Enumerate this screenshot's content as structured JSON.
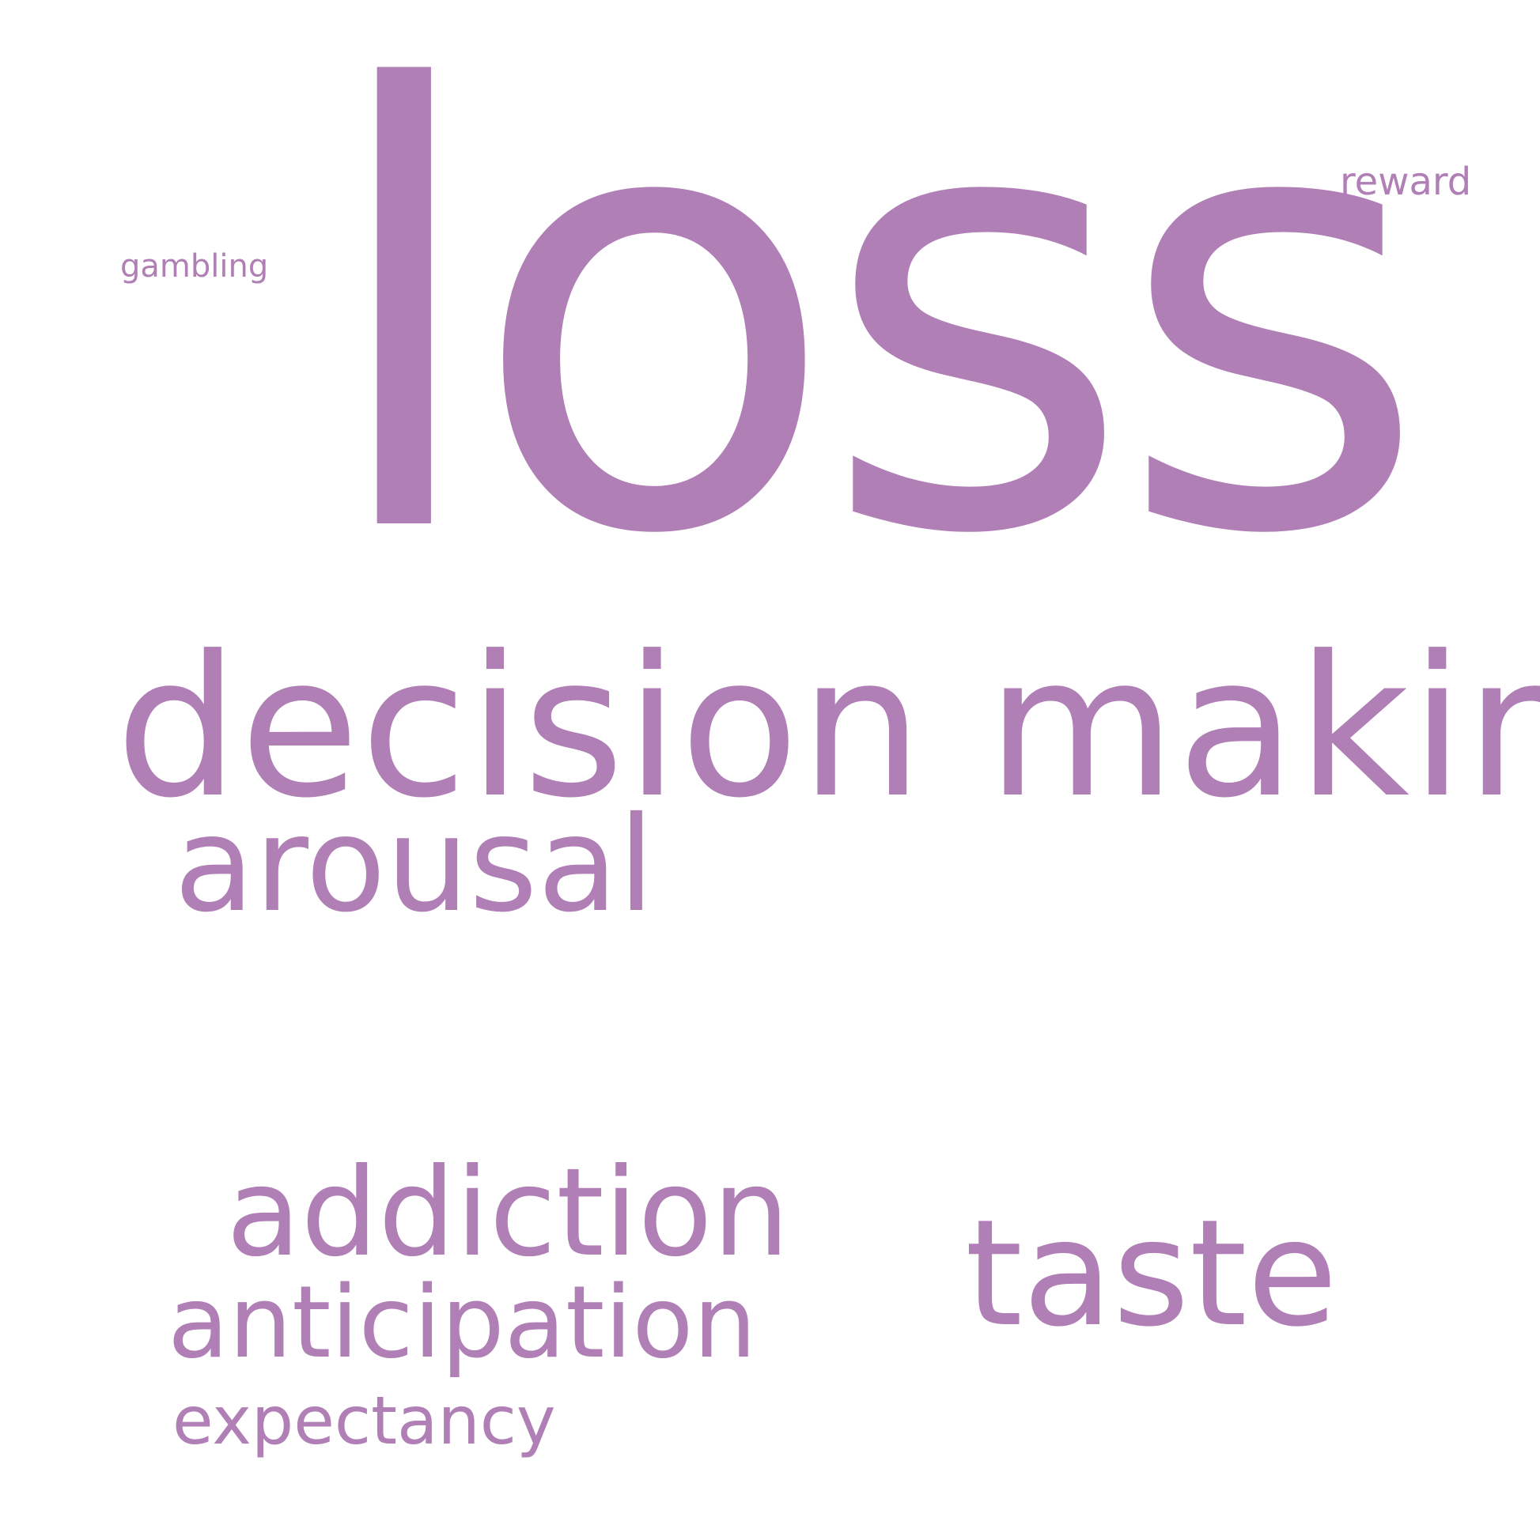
{
  "color": "#b07fb6",
  "words": {
    "loss": "loss",
    "decision_making": "decision making",
    "arousal": "arousal",
    "addiction": "addiction",
    "anticipation": "anticipation",
    "expectancy": "expectancy",
    "taste": "taste",
    "reward": "reward",
    "gambling": "gambling"
  }
}
